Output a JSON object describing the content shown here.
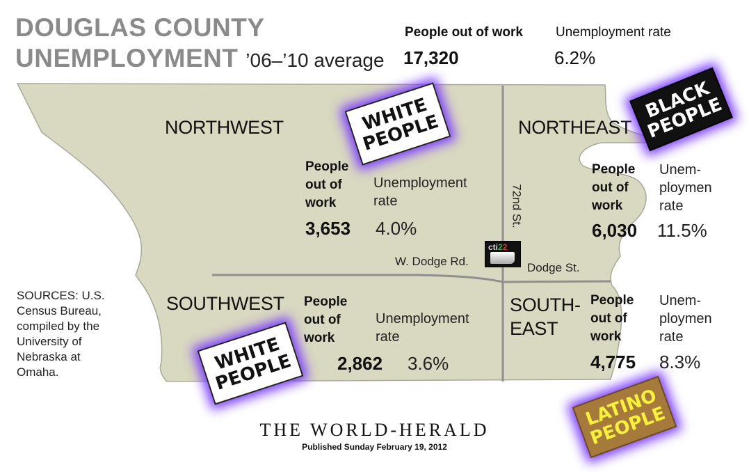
{
  "title": {
    "line1": "DOUGLAS COUNTY",
    "line2": "UNEMPLOYMENT",
    "subtitle": "’06–’10 average"
  },
  "county": {
    "people_label": "People out of work",
    "rate_label": "Unemployment rate",
    "people": "17,320",
    "rate": "6.2%"
  },
  "regions": {
    "northwest": {
      "name": "NORTHWEST",
      "people_l1": "People",
      "people_l2": "out of",
      "people_l3": "work",
      "rate_l1": "Unemployment",
      "rate_l2": "rate",
      "people": "3,653",
      "rate": "4.0%"
    },
    "northeast": {
      "name": "NORTHEAST",
      "people_l1": "People",
      "people_l2": "out of",
      "people_l3": "work",
      "rate_l1": "Unem-",
      "rate_l2": "ploymen",
      "rate_l3": "rate",
      "people": "6,030",
      "rate": "11.5%"
    },
    "southwest": {
      "name": "SOUTHWEST",
      "people_l1": "People",
      "people_l2": "out of",
      "people_l3": "work",
      "rate_l1": "Unemployment",
      "rate_l2": "rate",
      "people": "2,862",
      "rate": "3.6%"
    },
    "southeast": {
      "name_l1": "SOUTH-",
      "name_l2": "EAST",
      "people_l1": "People",
      "people_l2": "out of",
      "people_l3": "work",
      "rate_l1": "Unem-",
      "rate_l2": "ploymen",
      "rate_l3": "rate",
      "people": "4,775",
      "rate": "8.3%"
    }
  },
  "streets": {
    "street_72": "72nd St.",
    "w_dodge": "W. Dodge Rd.",
    "dodge": "Dodge St."
  },
  "sources": {
    "l1": "SOURCES: U.S.",
    "l2": "Census Bureau,",
    "l3": "compiled by the",
    "l4": "University of",
    "l5": "Nebraska at",
    "l6": "Omaha."
  },
  "footer": {
    "paper": "THE WORLD-HERALD",
    "published": "Published Sunday February 19, 2012"
  },
  "signs": {
    "white_nw_l1": "WHITE",
    "white_nw_l2": "PEOPLE",
    "black_ne_l1": "BLACK",
    "black_ne_l2": "PEOPLE",
    "white_sw_l1": "WHITE",
    "white_sw_l2": "PEOPLE",
    "latino_se_l1": "LATINO",
    "latino_se_l2": "PEOPLE"
  },
  "logo": {
    "part1": "cti",
    "part2": "2",
    "part3": "2"
  },
  "colors": {
    "map_fill": "#d9d8c0",
    "map_stroke": "#9a9a8a",
    "divider": "#8f8f8f",
    "title_gray": "#8a8a8a",
    "glow": "#7b3cff",
    "latino_sign": "#a67a3a",
    "latino_text": "#f7f03c"
  }
}
